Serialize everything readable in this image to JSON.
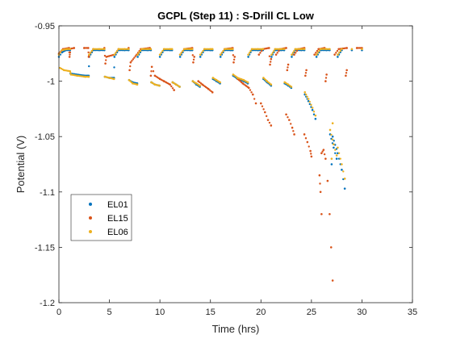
{
  "chart_data": {
    "type": "scatter",
    "title": "GCPL (Step 11) : S-Drill CL Low",
    "xlabel": "Time (hrs)",
    "ylabel": "Potential (V)",
    "xlim": [
      0,
      35
    ],
    "ylim": [
      -1.2,
      -0.95
    ],
    "xticks": [
      0,
      5,
      10,
      15,
      20,
      25,
      30,
      35
    ],
    "xtick_labels": [
      "0",
      "5",
      "10",
      "15",
      "20",
      "25",
      "30",
      "35"
    ],
    "yticks": [
      -1.2,
      -1.15,
      -1.1,
      -1.05,
      -1,
      -0.95
    ],
    "ytick_labels": [
      "-1.2",
      "-1.15",
      "-1.1",
      "-1.05",
      "-1",
      "-0.95"
    ],
    "grid": false,
    "legend_position": "lower-left",
    "cycle_starts": [
      0,
      3.0,
      5.5,
      7.8,
      10.0,
      12.0,
      14.0,
      16.0,
      18.0,
      19.8,
      21.5,
      23.3,
      25.3
    ],
    "series": [
      {
        "name": "EL01",
        "color": "#0072BD",
        "points": [
          [
            0.0,
            -0.978
          ],
          [
            0.3,
            -0.974
          ],
          [
            0.7,
            -0.972
          ],
          [
            1.1,
            -0.972
          ],
          [
            1.15,
            -0.993
          ],
          [
            1.8,
            -0.994
          ],
          [
            2.6,
            -0.995
          ],
          [
            2.95,
            -0.995
          ],
          [
            3.0,
            -0.978
          ],
          [
            3.4,
            -0.972
          ],
          [
            4.0,
            -0.972
          ],
          [
            4.5,
            -0.972
          ],
          [
            4.55,
            -0.996
          ],
          [
            5.0,
            -0.997
          ],
          [
            5.45,
            -0.997
          ],
          [
            5.5,
            -0.978
          ],
          [
            5.9,
            -0.972
          ],
          [
            6.5,
            -0.972
          ],
          [
            6.9,
            -0.972
          ],
          [
            6.95,
            -0.999
          ],
          [
            7.3,
            -1.001
          ],
          [
            7.75,
            -1.002
          ],
          [
            7.8,
            -0.978
          ],
          [
            8.2,
            -0.972
          ],
          [
            8.8,
            -0.972
          ],
          [
            9.1,
            -0.972
          ],
          [
            9.15,
            -1.001
          ],
          [
            9.5,
            -1.003
          ],
          [
            9.95,
            -1.004
          ],
          [
            10.0,
            -0.978
          ],
          [
            10.4,
            -0.972
          ],
          [
            11.0,
            -0.972
          ],
          [
            11.2,
            -0.972
          ],
          [
            11.25,
            -1.001
          ],
          [
            11.6,
            -1.003
          ],
          [
            11.95,
            -1.005
          ],
          [
            12.0,
            -0.978
          ],
          [
            12.4,
            -0.972
          ],
          [
            13.0,
            -0.972
          ],
          [
            13.2,
            -0.972
          ],
          [
            13.25,
            -1.0
          ],
          [
            13.6,
            -1.003
          ],
          [
            13.95,
            -1.005
          ],
          [
            14.0,
            -0.978
          ],
          [
            14.4,
            -0.972
          ],
          [
            15.0,
            -0.972
          ],
          [
            15.2,
            -0.972
          ],
          [
            15.25,
            -0.998
          ],
          [
            15.6,
            -1.0
          ],
          [
            15.95,
            -1.002
          ],
          [
            16.0,
            -0.978
          ],
          [
            16.4,
            -0.972
          ],
          [
            17.0,
            -0.972
          ],
          [
            17.2,
            -0.972
          ],
          [
            17.25,
            -0.995
          ],
          [
            17.7,
            -0.998
          ],
          [
            18.3,
            -1.0
          ],
          [
            18.7,
            -1.002
          ],
          [
            18.75,
            -0.978
          ],
          [
            19.1,
            -0.972
          ],
          [
            19.7,
            -0.972
          ],
          [
            20.2,
            -0.972
          ],
          [
            20.25,
            -0.998
          ],
          [
            20.6,
            -1.001
          ],
          [
            21.0,
            -1.004
          ],
          [
            21.05,
            -0.978
          ],
          [
            21.4,
            -0.972
          ],
          [
            22.0,
            -0.972
          ],
          [
            22.3,
            -0.972
          ],
          [
            22.35,
            -1.002
          ],
          [
            22.7,
            -1.004
          ],
          [
            23.0,
            -1.006
          ],
          [
            23.05,
            -0.978
          ],
          [
            23.4,
            -0.972
          ],
          [
            24.0,
            -0.972
          ],
          [
            24.3,
            -0.972
          ],
          [
            24.35,
            -1.012
          ],
          [
            24.7,
            -1.018
          ],
          [
            25.1,
            -1.026
          ],
          [
            25.4,
            -1.034
          ],
          [
            25.5,
            -0.978
          ],
          [
            25.9,
            -0.972
          ],
          [
            26.5,
            -0.972
          ],
          [
            26.8,
            -0.972
          ],
          [
            26.85,
            -1.048
          ],
          [
            27.2,
            -1.06
          ],
          [
            27.5,
            -1.07
          ],
          [
            27.0,
            -1.075
          ],
          [
            27.6,
            -0.978
          ],
          [
            28.0,
            -0.972
          ],
          [
            29.0,
            -0.972
          ],
          [
            30.0,
            -0.972
          ],
          [
            27.1,
            -1.05
          ],
          [
            27.6,
            -1.065
          ],
          [
            28.0,
            -1.08
          ],
          [
            28.3,
            -1.097
          ]
        ]
      },
      {
        "name": "EL15",
        "color": "#D95319",
        "points": [
          [
            0.0,
            -0.975
          ],
          [
            0.4,
            -0.971
          ],
          [
            1.0,
            -0.97
          ],
          [
            1.05,
            -0.978
          ],
          [
            1.1,
            -0.974
          ],
          [
            1.0,
            -0.971
          ],
          [
            1.5,
            -0.97
          ],
          [
            2.5,
            -0.97
          ],
          [
            2.9,
            -0.97
          ],
          [
            2.95,
            -0.978
          ],
          [
            3.0,
            -0.976
          ],
          [
            3.4,
            -0.971
          ],
          [
            4.5,
            -0.97
          ],
          [
            4.6,
            -0.984
          ],
          [
            4.7,
            -0.978
          ],
          [
            5.5,
            -0.976
          ],
          [
            5.9,
            -0.971
          ],
          [
            6.9,
            -0.97
          ],
          [
            7.0,
            -0.99
          ],
          [
            7.1,
            -0.983
          ],
          [
            7.7,
            -0.976
          ],
          [
            8.1,
            -0.971
          ],
          [
            9.0,
            -0.97
          ],
          [
            9.1,
            -0.995
          ],
          [
            9.2,
            -0.987
          ],
          [
            9.5,
            -0.995
          ],
          [
            10.0,
            -0.998
          ],
          [
            10.4,
            -1.0
          ],
          [
            11.0,
            -1.003
          ],
          [
            11.4,
            -1.008
          ],
          [
            12.0,
            -0.976
          ],
          [
            12.4,
            -0.971
          ],
          [
            13.2,
            -0.97
          ],
          [
            13.3,
            -0.983
          ],
          [
            13.4,
            -0.978
          ],
          [
            13.8,
            -1.0
          ],
          [
            14.2,
            -1.003
          ],
          [
            14.8,
            -1.007
          ],
          [
            15.2,
            -1.01
          ],
          [
            16.0,
            -0.976
          ],
          [
            16.4,
            -0.971
          ],
          [
            17.2,
            -0.97
          ],
          [
            17.3,
            -0.983
          ],
          [
            17.4,
            -0.978
          ],
          [
            17.7,
            -0.998
          ],
          [
            18.2,
            -1.002
          ],
          [
            18.8,
            -1.006
          ],
          [
            19.2,
            -1.012
          ],
          [
            19.5,
            -1.02
          ],
          [
            19.8,
            -0.976
          ],
          [
            20.2,
            -0.971
          ],
          [
            20.8,
            -0.97
          ],
          [
            20.9,
            -0.985
          ],
          [
            21.0,
            -0.98
          ],
          [
            20.0,
            -1.02
          ],
          [
            20.4,
            -1.028
          ],
          [
            20.7,
            -1.035
          ],
          [
            21.0,
            -1.04
          ],
          [
            21.5,
            -0.976
          ],
          [
            21.9,
            -0.971
          ],
          [
            22.5,
            -0.97
          ],
          [
            22.6,
            -0.99
          ],
          [
            22.7,
            -0.985
          ],
          [
            22.5,
            -1.03
          ],
          [
            22.8,
            -1.035
          ],
          [
            23.1,
            -1.042
          ],
          [
            23.3,
            -1.048
          ],
          [
            23.3,
            -0.976
          ],
          [
            23.7,
            -0.971
          ],
          [
            24.3,
            -0.97
          ],
          [
            24.4,
            -0.995
          ],
          [
            24.5,
            -0.99
          ],
          [
            24.3,
            -1.048
          ],
          [
            24.6,
            -1.055
          ],
          [
            24.9,
            -1.063
          ],
          [
            25.0,
            -1.068
          ],
          [
            25.3,
            -0.976
          ],
          [
            25.7,
            -0.971
          ],
          [
            26.3,
            -0.97
          ],
          [
            26.4,
            -1.0
          ],
          [
            26.5,
            -0.994
          ],
          [
            25.8,
            -1.085
          ],
          [
            25.9,
            -1.1
          ],
          [
            26.0,
            -1.12
          ],
          [
            26.0,
            -1.065
          ],
          [
            26.2,
            -1.062
          ],
          [
            26.4,
            -1.07
          ],
          [
            26.6,
            -1.09
          ],
          [
            26.8,
            -1.12
          ],
          [
            26.95,
            -1.15
          ],
          [
            27.1,
            -1.18
          ],
          [
            27.3,
            -0.976
          ],
          [
            27.7,
            -0.971
          ],
          [
            28.5,
            -0.97
          ],
          [
            29.5,
            -0.97
          ],
          [
            30.0,
            -0.97
          ],
          [
            28.4,
            -0.995
          ],
          [
            28.5,
            -0.99
          ]
        ]
      },
      {
        "name": "EL06",
        "color": "#EDB120",
        "points": [
          [
            0.0,
            -0.976
          ],
          [
            0.3,
            -0.972
          ],
          [
            0.8,
            -0.971
          ],
          [
            1.1,
            -0.971
          ],
          [
            0.1,
            -0.988
          ],
          [
            0.5,
            -0.99
          ],
          [
            1.1,
            -0.991
          ],
          [
            1.2,
            -0.994
          ],
          [
            1.8,
            -0.995
          ],
          [
            2.6,
            -0.996
          ],
          [
            2.95,
            -0.996
          ],
          [
            3.0,
            -0.976
          ],
          [
            3.4,
            -0.971
          ],
          [
            4.0,
            -0.971
          ],
          [
            4.5,
            -0.971
          ],
          [
            4.55,
            -0.996
          ],
          [
            5.0,
            -0.997
          ],
          [
            5.45,
            -0.998
          ],
          [
            5.5,
            -0.976
          ],
          [
            5.9,
            -0.971
          ],
          [
            6.5,
            -0.971
          ],
          [
            6.9,
            -0.971
          ],
          [
            6.95,
            -0.999
          ],
          [
            7.3,
            -1.002
          ],
          [
            7.75,
            -1.003
          ],
          [
            7.8,
            -0.976
          ],
          [
            8.2,
            -0.971
          ],
          [
            8.8,
            -0.971
          ],
          [
            9.1,
            -0.971
          ],
          [
            9.15,
            -1.001
          ],
          [
            9.5,
            -1.003
          ],
          [
            9.95,
            -1.004
          ],
          [
            10.0,
            -0.976
          ],
          [
            10.4,
            -0.971
          ],
          [
            11.0,
            -0.971
          ],
          [
            11.2,
            -0.971
          ],
          [
            11.25,
            -1.001
          ],
          [
            11.6,
            -1.003
          ],
          [
            11.95,
            -1.005
          ],
          [
            12.0,
            -0.976
          ],
          [
            12.4,
            -0.971
          ],
          [
            13.0,
            -0.971
          ],
          [
            13.2,
            -0.971
          ],
          [
            13.25,
            -1.0
          ],
          [
            13.6,
            -1.002
          ],
          [
            13.95,
            -1.004
          ],
          [
            14.0,
            -0.976
          ],
          [
            14.4,
            -0.971
          ],
          [
            15.0,
            -0.971
          ],
          [
            15.2,
            -0.971
          ],
          [
            15.25,
            -0.997
          ],
          [
            15.6,
            -0.999
          ],
          [
            15.95,
            -1.001
          ],
          [
            16.0,
            -0.976
          ],
          [
            16.4,
            -0.971
          ],
          [
            17.0,
            -0.971
          ],
          [
            17.2,
            -0.971
          ],
          [
            17.25,
            -0.994
          ],
          [
            17.7,
            -0.997
          ],
          [
            18.3,
            -0.999
          ],
          [
            18.7,
            -1.001
          ],
          [
            18.75,
            -0.976
          ],
          [
            19.1,
            -0.971
          ],
          [
            19.7,
            -0.971
          ],
          [
            20.2,
            -0.971
          ],
          [
            20.25,
            -0.997
          ],
          [
            20.6,
            -1.0
          ],
          [
            21.0,
            -1.003
          ],
          [
            21.05,
            -0.976
          ],
          [
            21.4,
            -0.971
          ],
          [
            22.0,
            -0.971
          ],
          [
            22.3,
            -0.971
          ],
          [
            22.35,
            -1.001
          ],
          [
            22.7,
            -1.003
          ],
          [
            23.0,
            -1.005
          ],
          [
            23.05,
            -0.976
          ],
          [
            23.4,
            -0.971
          ],
          [
            24.0,
            -0.971
          ],
          [
            24.3,
            -0.971
          ],
          [
            24.35,
            -1.01
          ],
          [
            24.7,
            -1.016
          ],
          [
            25.1,
            -1.024
          ],
          [
            25.4,
            -1.031
          ],
          [
            25.5,
            -0.976
          ],
          [
            25.9,
            -0.971
          ],
          [
            26.5,
            -0.971
          ],
          [
            26.8,
            -0.971
          ],
          [
            26.85,
            -1.044
          ],
          [
            27.2,
            -1.057
          ],
          [
            27.5,
            -1.067
          ],
          [
            27.0,
            -1.07
          ],
          [
            27.6,
            -0.976
          ],
          [
            28.0,
            -0.971
          ],
          [
            29.0,
            -0.971
          ],
          [
            30.0,
            -0.971
          ],
          [
            27.1,
            -1.038
          ],
          [
            27.6,
            -1.06
          ],
          [
            28.0,
            -1.075
          ],
          [
            28.3,
            -1.088
          ]
        ]
      }
    ]
  }
}
